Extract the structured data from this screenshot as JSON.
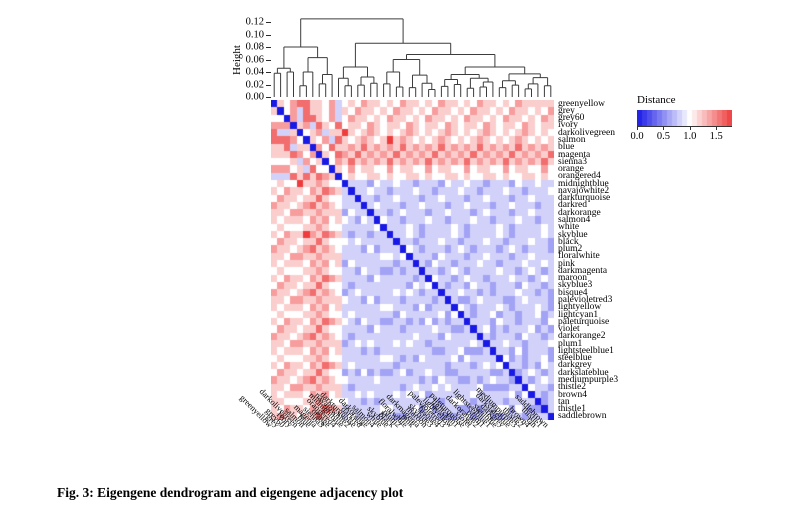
{
  "figure": {
    "caption": "Fig. 3: Eigengene dendrogram and eigengene adjacency plot"
  },
  "chart_data": [
    {
      "type": "dendrogram",
      "ylabel": "Height",
      "ylim": [
        0,
        0.13
      ],
      "ytick_values": [
        0.0,
        0.02,
        0.04,
        0.06,
        0.08,
        0.1,
        0.12
      ],
      "ytick_labels": [
        "0.00",
        "0.02",
        "0.04",
        "0.06",
        "0.08",
        "0.10",
        "0.12"
      ],
      "root_height": 0.125,
      "tree": {
        "h": 0.125,
        "c": [
          {
            "h": 0.08,
            "c": [
              {
                "h": 0.046,
                "c": [
                  {
                    "h": 0.038,
                    "c": [
                      0,
                      1
                    ]
                  },
                  {
                    "h": 0.04,
                    "c": [
                      2,
                      3
                    ]
                  }
                ]
              },
              {
                "h": 0.063,
                "c": [
                  {
                    "h": 0.04,
                    "c": [
                      {
                        "h": 0.018,
                        "c": [
                          4,
                          5
                        ]
                      },
                      6
                    ]
                  },
                  {
                    "h": 0.036,
                    "c": [
                      {
                        "h": 0.021,
                        "c": [
                          7,
                          8
                        ]
                      },
                      9
                    ]
                  }
                ]
              }
            ]
          },
          {
            "h": 0.086,
            "c": [
              {
                "h": 0.048,
                "c": [
                  {
                    "h": 0.03,
                    "c": [
                      10,
                      {
                        "h": 0.018,
                        "c": [
                          11,
                          12
                        ]
                      }
                    ]
                  },
                  {
                    "h": 0.032,
                    "c": [
                      {
                        "h": 0.019,
                        "c": [
                          13,
                          14
                        ]
                      },
                      {
                        "h": 0.022,
                        "c": [
                          15,
                          16
                        ]
                      }
                    ]
                  }
                ]
              },
              {
                "h": 0.068,
                "c": [
                  {
                    "h": 0.06,
                    "c": [
                      {
                        "h": 0.04,
                        "c": [
                          {
                            "h": 0.021,
                            "c": [
                              17,
                              18
                            ]
                          },
                          {
                            "h": 0.016,
                            "c": [
                              19,
                              20
                            ]
                          }
                        ]
                      },
                      {
                        "h": 0.035,
                        "c": [
                          {
                            "h": 0.015,
                            "c": [
                              21,
                              22
                            ]
                          },
                          {
                            "h": 0.022,
                            "c": [
                              23,
                              {
                                "h": 0.012,
                                "c": [
                                  24,
                                  25
                                ]
                              }
                            ]
                          }
                        ]
                      }
                    ]
                  },
                  {
                    "h": 0.048,
                    "c": [
                      {
                        "h": 0.036,
                        "c": [
                          {
                            "h": 0.028,
                            "c": [
                              {
                                "h": 0.017,
                                "c": [
                                  26,
                                  27
                                ]
                              },
                              {
                                "h": 0.02,
                                "c": [
                                  28,
                                  29
                                ]
                              }
                            ]
                          },
                          {
                            "h": 0.03,
                            "c": [
                              {
                                "h": 0.014,
                                "c": [
                                  30,
                                  31
                                ]
                              },
                              {
                                "h": 0.024,
                                "c": [
                                  {
                                    "h": 0.016,
                                    "c": [
                                      32,
                                      33
                                    ]
                                  },
                                  34
                                ]
                              }
                            ]
                          }
                        ]
                      },
                      {
                        "h": 0.037,
                        "c": [
                          {
                            "h": 0.026,
                            "c": [
                              {
                                "h": 0.015,
                                "c": [
                                  35,
                                  36
                                ]
                              },
                              {
                                "h": 0.019,
                                "c": [
                                  37,
                                  38
                                ]
                              }
                            ]
                          },
                          {
                            "h": 0.031,
                            "c": [
                              {
                                "h": 0.021,
                                "c": [
                                  {
                                    "h": 0.013,
                                    "c": [
                                      39,
                                      40
                                    ]
                                  },
                                  41
                                ]
                              },
                              {
                                "h": 0.018,
                                "c": [
                                  42,
                                  43
                                ]
                              }
                            ]
                          }
                        ]
                      }
                    ]
                  }
                ]
              }
            ]
          }
        ]
      }
    },
    {
      "type": "heatmap",
      "legend_title": "Distance",
      "scale": {
        "min": 0.0,
        "max": 1.8,
        "tick_values": [
          0.0,
          0.5,
          1.0,
          1.5
        ],
        "tick_labels": [
          "0.0",
          "0.5",
          "1.0",
          "1.5"
        ],
        "color_low": "#1919E6",
        "color_mid": "#FFFFFF",
        "color_high": "#EE3C3C",
        "diagonal_color": "#1919E6"
      },
      "labels": [
        "greenyellow",
        "grey",
        "grey60",
        "ivory",
        "darkolivegreen",
        "salmon",
        "blue",
        "magenta",
        "sienna3",
        "orange",
        "orangered4",
        "midnightblue",
        "navajowhite2",
        "darkturquoise",
        "darkred",
        "darkorange",
        "salmon4",
        "white",
        "skyblue",
        "black",
        "plum2",
        "floralwhite",
        "pink",
        "darkmagenta",
        "maroon",
        "skyblue3",
        "bisque4",
        "palevioletred3",
        "lightyellow",
        "lightcyan1",
        "paleturquoise",
        "violet",
        "darkorange2",
        "plum1",
        "lightsteelblue1",
        "steelblue",
        "darkgrey",
        "darkslateblue",
        "mediumpurple3",
        "thistle2",
        "brown4",
        "tan",
        "thistle1",
        "saddlebrown"
      ],
      "matrix_encoding": "Symmetric 44x44 distance matrix. matrix_upper_rows[i] gives digits for cells j>i (k=j-i-1); distance = digit*0.2 (0=identical/blue, 1.0=white, 1.8=max red). Diagonal = 0. Strings longer than needed are truncated; shorter are padded with last digit.",
      "matrix_upper_rows": [
        "6578866574565766565766565766565766565766",
        "574866574657665657665657665657665657665657665",
        "74886574576656576656576656576656576656576656",
        "6748658566576566576566576566576566576566576",
        "567466965676565676565676565676565676565676",
        "65748656765696765656765656765656765656765",
        "7586676867676867676867676867676867676867",
        "658768676768676768676768676768676768676",
        "57686767686767686767686767686767686767",
        "6575665575665575665575665575665575665",
        "565566565566565566565566565566565566",
        "4443544544344435445443444354454434",
        "4454434445443444544344454434445443",
        "4434454443445444344544434454443445",
        "4544434454443445444344544434454443",
        "4434544434454443454443445444345444",
        "5443444544344454434445443444544344",
        "4445434444543444454344445434444543",
        "4454344445434444543444454344445434",
        "4434445443444544344454434445443444",
        "5434443454344434543444345434443454",
        "4443544434454443445444344544434454",
        "4354434445443444544543444354434445",
        "4434543444454434543444454434543444",
        "5443454434445443454434445443454434",
        "4344354434443544344435443444354434",
        "4454434344454434344454434344454434",
        "4334544433454443345444334544433454",
        "5434445434445434445434445434445434",
        "4344534434453443445344344534434453",
        "4443544344435443444354434443544344",
        "4534344453434445343444534344453434",
        "4344435443444354434443544344435443",
        "4454434445443444544344454434445443",
        "443534443534",
        "534344534344",
        "443435443435",
        "345434345434",
        "43454343",
        "54433443",
        "434435",
        "3445",
        "44"
      ]
    }
  ]
}
